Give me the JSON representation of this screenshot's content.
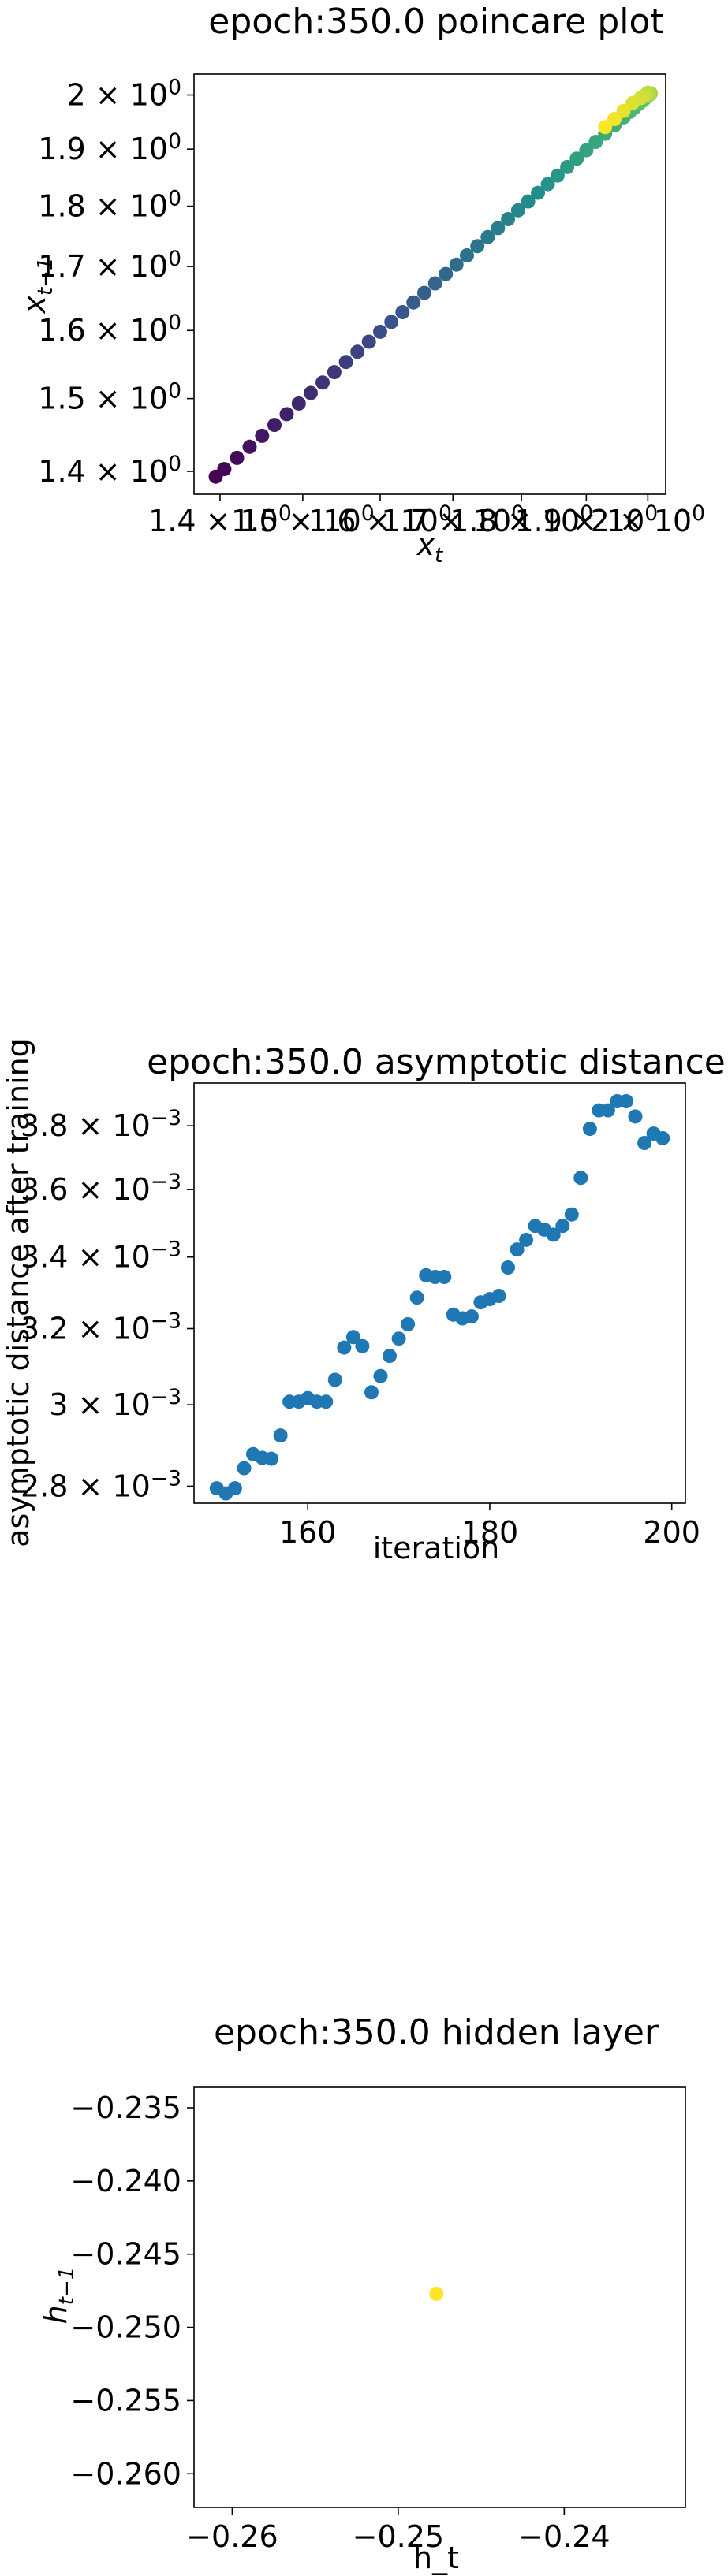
{
  "chart_data": [
    {
      "type": "scatter",
      "title": "epoch:350.0 poincare plot",
      "xlabel_base": "x",
      "xlabel_sub": "t",
      "ylabel_base": "x",
      "ylabel_sub": "t−1",
      "xscale": "log",
      "yscale": "log",
      "xlim": [
        1.37,
        2.03
      ],
      "ylim": [
        1.37,
        2.04
      ],
      "xticks": [
        {
          "value": 1.4,
          "mant": "1.4 × 10",
          "exp": "0"
        },
        {
          "value": 1.5,
          "mant": "1.5 × 10",
          "exp": "0"
        },
        {
          "value": 1.6,
          "mant": "1.6 × 10",
          "exp": "0"
        },
        {
          "value": 1.7,
          "mant": "1.7 × 10",
          "exp": "0"
        },
        {
          "value": 1.8,
          "mant": "1.8 × 10",
          "exp": "0"
        },
        {
          "value": 1.9,
          "mant": "1.9 × 10",
          "exp": "0"
        },
        {
          "value": 2.0,
          "mant": "2 × 10",
          "exp": "0"
        }
      ],
      "yticks": [
        {
          "value": 1.4,
          "mant": "1.4 × 10",
          "exp": "0"
        },
        {
          "value": 1.5,
          "mant": "1.5 × 10",
          "exp": "0"
        },
        {
          "value": 1.6,
          "mant": "1.6 × 10",
          "exp": "0"
        },
        {
          "value": 1.7,
          "mant": "1.7 × 10",
          "exp": "0"
        },
        {
          "value": 1.8,
          "mant": "1.8 × 10",
          "exp": "0"
        },
        {
          "value": 1.9,
          "mant": "1.9 × 10",
          "exp": "0"
        },
        {
          "value": 2.0,
          "mant": "2 × 10",
          "exp": "0"
        }
      ],
      "colormap": "viridis",
      "point_color": "#440154",
      "points_x": [
        1.395,
        1.405,
        1.42,
        1.435,
        1.45,
        1.465,
        1.48,
        1.495,
        1.51,
        1.525,
        1.54,
        1.555,
        1.57,
        1.585,
        1.6,
        1.615,
        1.63,
        1.645,
        1.66,
        1.675,
        1.69,
        1.705,
        1.72,
        1.735,
        1.75,
        1.765,
        1.78,
        1.795,
        1.81,
        1.825,
        1.84,
        1.855,
        1.87,
        1.885,
        1.9,
        1.915,
        1.93,
        1.945,
        1.96,
        1.97,
        1.978,
        1.985,
        1.99,
        1.994,
        1.997,
        1.999,
        2.0,
        2.001,
        2.002,
        2.003,
        2.004,
        2.005,
        2.0,
        1.998,
        1.995,
        1.988,
        1.975,
        1.96,
        1.945,
        1.93
      ],
      "points_y": [
        1.393,
        1.403,
        1.418,
        1.433,
        1.448,
        1.463,
        1.478,
        1.493,
        1.508,
        1.523,
        1.538,
        1.553,
        1.568,
        1.583,
        1.598,
        1.613,
        1.628,
        1.643,
        1.658,
        1.673,
        1.688,
        1.703,
        1.718,
        1.733,
        1.748,
        1.763,
        1.778,
        1.793,
        1.808,
        1.823,
        1.838,
        1.853,
        1.868,
        1.883,
        1.898,
        1.913,
        1.928,
        1.943,
        1.958,
        1.968,
        1.976,
        1.983,
        1.988,
        1.992,
        1.995,
        1.997,
        1.998,
        1.999,
        2.0,
        2.001,
        2.002,
        2.003,
        2.004,
        2.002,
        1.999,
        1.994,
        1.985,
        1.97,
        1.955,
        1.94
      ]
    },
    {
      "type": "scatter",
      "title": "epoch:350.0 asymptotic distance",
      "xlabel": "iteration",
      "ylabel": "asymptotic distance after training",
      "yscale": "log",
      "xlim": [
        147.5,
        201.5
      ],
      "ylim": [
        0.00276,
        0.00394
      ],
      "xticks": [
        {
          "value": 160,
          "label": "160"
        },
        {
          "value": 180,
          "label": "180"
        },
        {
          "value": 200,
          "label": "200"
        }
      ],
      "yticks": [
        {
          "value": 0.0028,
          "mant": "2.8 × 10",
          "exp": "−3"
        },
        {
          "value": 0.003,
          "mant": "3 × 10",
          "exp": "−3"
        },
        {
          "value": 0.0032,
          "mant": "3.2 × 10",
          "exp": "−3"
        },
        {
          "value": 0.0034,
          "mant": "3.4 × 10",
          "exp": "−3"
        },
        {
          "value": 0.0036,
          "mant": "3.6 × 10",
          "exp": "−3"
        },
        {
          "value": 0.0038,
          "mant": "3.8 × 10",
          "exp": "−3"
        }
      ],
      "point_color": "#1f77b4",
      "x": [
        150,
        151,
        152,
        153,
        154,
        155,
        156,
        157,
        158,
        159,
        160,
        161,
        162,
        163,
        164,
        165,
        166,
        167,
        168,
        169,
        170,
        171,
        172,
        173,
        174,
        175,
        176,
        177,
        178,
        179,
        180,
        181,
        182,
        183,
        184,
        185,
        186,
        187,
        188,
        189,
        190,
        191,
        192,
        193,
        194,
        195,
        196,
        197,
        198,
        199
      ],
      "y": [
        0.002795,
        0.002783,
        0.002795,
        0.002843,
        0.002877,
        0.002868,
        0.002866,
        0.002923,
        0.003008,
        0.003008,
        0.003017,
        0.003008,
        0.003008,
        0.003064,
        0.003149,
        0.003177,
        0.003153,
        0.003032,
        0.003074,
        0.003127,
        0.003173,
        0.003212,
        0.003285,
        0.003348,
        0.003343,
        0.003343,
        0.003238,
        0.003228,
        0.003233,
        0.003272,
        0.003281,
        0.00329,
        0.00337,
        0.003422,
        0.00345,
        0.003491,
        0.00348,
        0.003465,
        0.003491,
        0.003525,
        0.003636,
        0.00379,
        0.00385,
        0.00385,
        0.00388,
        0.00388,
        0.00383,
        0.003745,
        0.003775,
        0.00376
      ]
    },
    {
      "type": "scatter",
      "title": "epoch:350.0 hidden layer",
      "xlabel": "h_t",
      "ylabel_base": "h",
      "ylabel_sub": "t−1",
      "xlim": [
        -0.2623,
        -0.2327
      ],
      "ylim": [
        -0.2623,
        -0.2336
      ],
      "xticks": [
        {
          "value": -0.26,
          "label": "−0.26"
        },
        {
          "value": -0.25,
          "label": "−0.25"
        },
        {
          "value": -0.24,
          "label": "−0.24"
        }
      ],
      "yticks": [
        {
          "value": -0.26,
          "label": "−0.260"
        },
        {
          "value": -0.255,
          "label": "−0.255"
        },
        {
          "value": -0.25,
          "label": "−0.250"
        },
        {
          "value": -0.245,
          "label": "−0.245"
        },
        {
          "value": -0.24,
          "label": "−0.240"
        },
        {
          "value": -0.235,
          "label": "−0.235"
        }
      ],
      "point_color": "#fde725",
      "x": [
        -0.2477
      ],
      "y": [
        -0.2477
      ]
    }
  ]
}
